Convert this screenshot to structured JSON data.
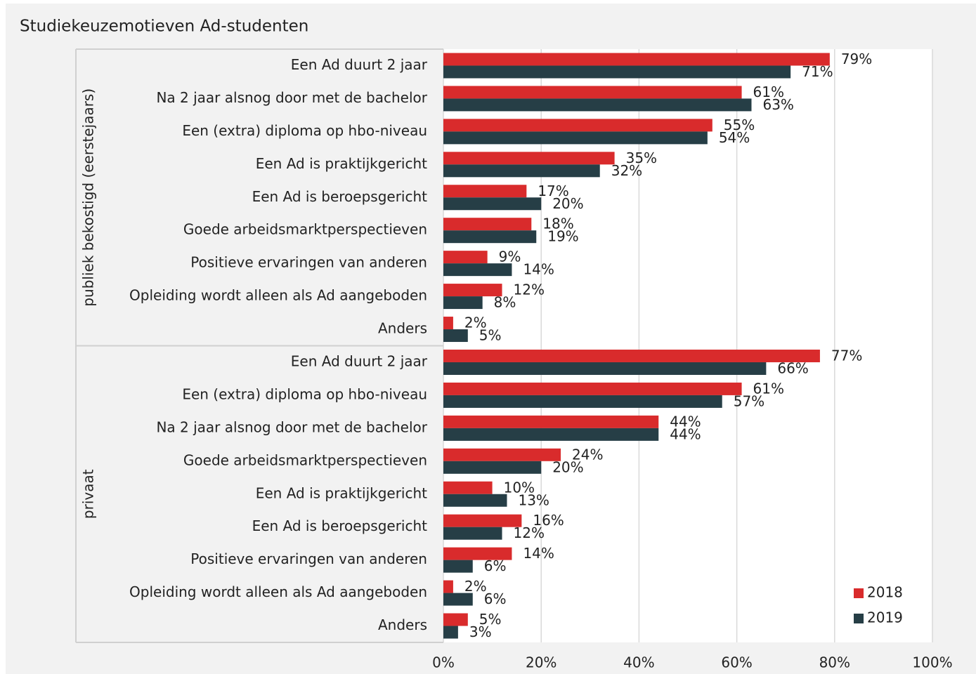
{
  "chart_data": {
    "type": "bar",
    "orientation": "horizontal",
    "title": "Studiekeuzemotieven Ad-studenten",
    "groups": [
      {
        "name": "publiek bekostigd (eerstejaars)",
        "categories": [
          "Een Ad duurt 2 jaar",
          "Na 2 jaar alsnog door met de bachelor",
          "Een (extra) diploma op hbo-niveau",
          "Een Ad is praktijkgericht",
          "Een Ad is beroepsgericht",
          "Goede arbeidsmarktperspectieven",
          "Positieve ervaringen van anderen",
          "Opleiding wordt alleen als Ad aangeboden",
          "Anders"
        ]
      },
      {
        "name": "privaat",
        "categories": [
          "Een Ad duurt 2 jaar",
          "Een (extra) diploma op hbo-niveau",
          "Na 2 jaar alsnog door met de bachelor",
          "Goede arbeidsmarktperspectieven",
          "Een Ad is praktijkgericht",
          "Een Ad is beroepsgericht",
          "Positieve ervaringen van anderen",
          "Opleiding wordt alleen als Ad aangeboden",
          "Anders"
        ]
      }
    ],
    "series": [
      {
        "name": "2018",
        "color": "#d92b2c",
        "values": [
          79,
          61,
          55,
          35,
          17,
          18,
          9,
          12,
          2,
          77,
          61,
          44,
          24,
          10,
          16,
          14,
          2,
          5
        ],
        "value_labels": [
          "79%",
          "61%",
          "55%",
          "35%",
          "17%",
          "18%",
          "9%",
          "12%",
          "2%",
          "77%",
          "61%",
          "44%",
          "24%",
          "10%",
          "16%",
          "14%",
          "2%",
          "5%"
        ]
      },
      {
        "name": "2019",
        "color": "#263e46",
        "values": [
          71,
          63,
          54,
          32,
          20,
          19,
          14,
          8,
          5,
          66,
          57,
          44,
          20,
          13,
          12,
          6,
          6,
          3
        ],
        "value_labels": [
          "71%",
          "63%",
          "54%",
          "32%",
          "20%",
          "19%",
          "14%",
          "8%",
          "5%",
          "66%",
          "57%",
          "44%",
          "20%",
          "13%",
          "12%",
          "6%",
          "6%",
          "3%"
        ]
      }
    ],
    "xlim": [
      0,
      100
    ],
    "xticks": [
      {
        "value": 0,
        "label": "0%"
      },
      {
        "value": 20,
        "label": "20%"
      },
      {
        "value": 40,
        "label": "40%"
      },
      {
        "value": 60,
        "label": "60%"
      },
      {
        "value": 80,
        "label": "80%"
      },
      {
        "value": 100,
        "label": "100%"
      }
    ],
    "grid": true,
    "legend": "lower right"
  }
}
